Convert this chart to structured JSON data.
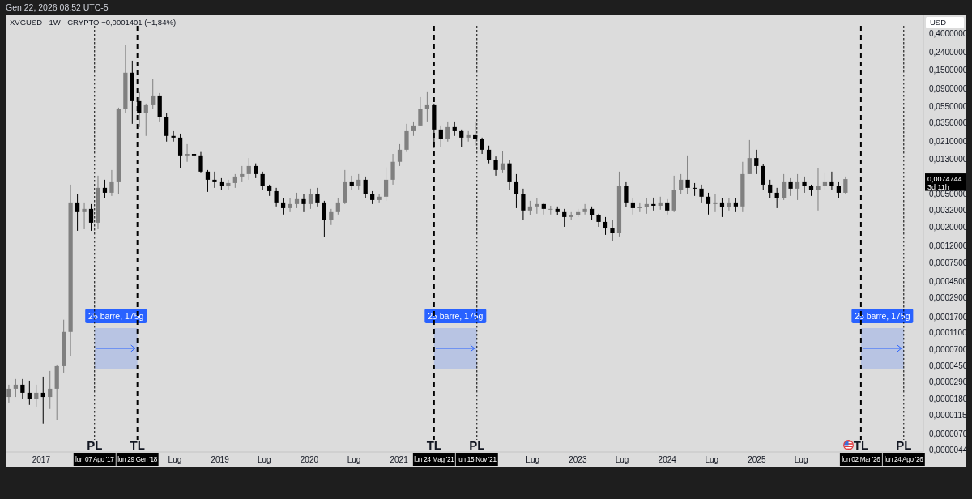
{
  "chart_data": {
    "type": "candlestick",
    "title": "XVGUSD · 1W · CRYPTO −0,0001401 (−1,84%)",
    "subtitle": "Gen 22, 2026 08:52 UTC-5",
    "ylabel": "USD",
    "x": [
      "2016-08-22",
      "2016-09-19",
      "2016-10-17",
      "2016-11-14",
      "2016-12-12",
      "2017-01-09",
      "2017-02-06",
      "2017-03-06",
      "2017-04-03",
      "2017-05-01",
      "2017-05-29",
      "2017-06-26",
      "2017-07-24",
      "2017-08-21",
      "2017-09-18",
      "2017-10-16",
      "2017-11-13",
      "2017-12-11",
      "2018-01-08",
      "2018-02-05",
      "2018-03-05",
      "2018-04-02",
      "2018-04-30",
      "2018-05-28",
      "2018-06-25",
      "2018-07-23",
      "2018-08-20",
      "2018-09-17",
      "2018-10-15",
      "2018-11-12",
      "2018-12-10",
      "2019-01-07",
      "2019-02-04",
      "2019-03-04",
      "2019-04-01",
      "2019-04-29",
      "2019-05-27",
      "2019-06-24",
      "2019-07-22",
      "2019-08-19",
      "2019-09-16",
      "2019-10-14",
      "2019-11-11",
      "2019-12-09",
      "2020-01-06",
      "2020-02-03",
      "2020-03-02",
      "2020-03-30",
      "2020-04-27",
      "2020-05-25",
      "2020-06-22",
      "2020-07-20",
      "2020-08-17",
      "2020-09-14",
      "2020-10-12",
      "2020-11-09",
      "2020-12-07",
      "2021-01-04",
      "2021-02-01",
      "2021-03-01",
      "2021-03-29",
      "2021-04-26",
      "2021-05-24",
      "2021-06-21",
      "2021-07-19",
      "2021-08-16",
      "2021-09-13",
      "2021-10-11",
      "2021-11-08",
      "2021-12-06",
      "2022-01-03",
      "2022-01-31",
      "2022-02-28",
      "2022-03-28",
      "2022-04-25",
      "2022-05-23",
      "2022-06-20",
      "2022-07-18",
      "2022-08-15",
      "2022-09-12",
      "2022-10-10",
      "2022-11-07",
      "2022-12-05",
      "2023-01-02",
      "2023-01-30",
      "2023-02-27",
      "2023-03-27",
      "2023-04-24",
      "2023-05-22",
      "2023-06-19",
      "2023-07-17",
      "2023-08-14",
      "2023-09-11",
      "2023-10-09",
      "2023-11-06",
      "2023-12-04",
      "2024-01-01",
      "2024-01-29",
      "2024-02-26",
      "2024-03-25",
      "2024-04-22",
      "2024-05-20",
      "2024-06-17",
      "2024-07-15",
      "2024-08-12",
      "2024-09-09",
      "2024-10-07",
      "2024-11-04",
      "2024-12-02",
      "2024-12-30",
      "2025-01-27",
      "2025-02-24",
      "2025-03-24",
      "2025-04-21",
      "2025-05-19",
      "2025-06-16",
      "2025-07-14",
      "2025-08-11",
      "2025-09-08",
      "2025-10-06",
      "2025-11-03",
      "2025-12-01",
      "2025-12-29"
    ],
    "ohlc": [
      [
        1.9e-05,
        2.66e-05,
        1.63e-05,
        2.38e-05
      ],
      [
        2.38e-05,
        3.11e-05,
        1.9e-05,
        2.66e-05
      ],
      [
        2.66e-05,
        3.11e-05,
        1.82e-05,
        2.13e-05
      ],
      [
        2.13e-05,
        2.97e-05,
        1.53e-05,
        1.82e-05
      ],
      [
        1.82e-05,
        2.66e-05,
        1.46e-05,
        2.13e-05
      ],
      [
        2.13e-05,
        3.32e-05,
        9.2e-06,
        1.9e-05
      ],
      [
        1.9e-05,
        3.88e-05,
        1.37e-05,
        2.38e-05
      ],
      [
        2.38e-05,
        4.63e-05,
        1.02e-05,
        4.43e-05
      ],
      [
        4.43e-05,
        0.000158,
        3.71e-05,
        0.000113
      ],
      [
        0.000113,
        0.00642,
        5.78e-05,
        0.00394
      ],
      [
        0.00394,
        0.00492,
        0.00181,
        0.00302
      ],
      [
        0.00302,
        0.00394,
        0.00189,
        0.0033
      ],
      [
        0.0033,
        0.00377,
        0.00181,
        0.00226
      ],
      [
        0.00226,
        0.0082,
        0.00189,
        0.00588
      ],
      [
        0.00588,
        0.00734,
        0.0044,
        0.00514
      ],
      [
        0.00514,
        0.00958,
        0.00471,
        0.00686
      ],
      [
        0.00686,
        0.053,
        0.00492,
        0.0507
      ],
      [
        0.0507,
        0.293,
        0.0454,
        0.138
      ],
      [
        0.138,
        0.192,
        0.034,
        0.0633
      ],
      [
        0.0633,
        0.0827,
        0.0311,
        0.0454
      ],
      [
        0.0454,
        0.0592,
        0.0244,
        0.0566
      ],
      [
        0.0566,
        0.1155,
        0.0507,
        0.0739
      ],
      [
        0.0739,
        0.079,
        0.0363,
        0.0406
      ],
      [
        0.0406,
        0.0454,
        0.0209,
        0.0244
      ],
      [
        0.0244,
        0.0278,
        0.0209,
        0.0233
      ],
      [
        0.0233,
        0.026,
        0.01,
        0.0143
      ],
      [
        0.0143,
        0.0195,
        0.012,
        0.0149
      ],
      [
        0.0149,
        0.0167,
        0.013,
        0.0143
      ],
      [
        0.0143,
        0.0157,
        0.00897,
        0.00917
      ],
      [
        0.00917,
        0.00958,
        0.00526,
        0.00734
      ],
      [
        0.00734,
        0.00917,
        0.00588,
        0.00686
      ],
      [
        0.00686,
        0.00767,
        0.0055,
        0.00614
      ],
      [
        0.00614,
        0.00734,
        0.00562,
        0.00671
      ],
      [
        0.00671,
        0.00857,
        0.00588,
        0.00802
      ],
      [
        0.00802,
        0.0107,
        0.00686,
        0.00857
      ],
      [
        0.00857,
        0.0133,
        0.00734,
        0.0107
      ],
      [
        0.0107,
        0.0115,
        0.00767,
        0.00857
      ],
      [
        0.00857,
        0.00917,
        0.0055,
        0.00614
      ],
      [
        0.00614,
        0.00642,
        0.00471,
        0.00537
      ],
      [
        0.00537,
        0.00588,
        0.00353,
        0.00394
      ],
      [
        0.00394,
        0.0044,
        0.00283,
        0.00337
      ],
      [
        0.00337,
        0.0044,
        0.00302,
        0.00377
      ],
      [
        0.00377,
        0.00514,
        0.00337,
        0.00431
      ],
      [
        0.00431,
        0.00492,
        0.00302,
        0.00377
      ],
      [
        0.00377,
        0.00575,
        0.0033,
        0.00492
      ],
      [
        0.00492,
        0.00588,
        0.00353,
        0.00394
      ],
      [
        0.00394,
        0.00412,
        0.00152,
        0.00242
      ],
      [
        0.00242,
        0.0033,
        0.00212,
        0.00302
      ],
      [
        0.00302,
        0.0044,
        0.00283,
        0.00394
      ],
      [
        0.00394,
        0.00958,
        0.00377,
        0.00686
      ],
      [
        0.00686,
        0.0082,
        0.0055,
        0.00614
      ],
      [
        0.00614,
        0.00857,
        0.00562,
        0.00734
      ],
      [
        0.00734,
        0.00802,
        0.0044,
        0.00492
      ],
      [
        0.00492,
        0.00537,
        0.00377,
        0.00421
      ],
      [
        0.00421,
        0.00492,
        0.00394,
        0.00461
      ],
      [
        0.00461,
        0.0103,
        0.00412,
        0.00734
      ],
      [
        0.00734,
        0.0149,
        0.00642,
        0.012
      ],
      [
        0.012,
        0.0195,
        0.0107,
        0.0167
      ],
      [
        0.0167,
        0.034,
        0.0157,
        0.0278
      ],
      [
        0.0278,
        0.0363,
        0.0244,
        0.0325
      ],
      [
        0.0325,
        0.0707,
        0.0325,
        0.0507
      ],
      [
        0.0507,
        0.0827,
        0.0363,
        0.0566
      ],
      [
        0.0566,
        0.0592,
        0.0175,
        0.0291
      ],
      [
        0.0291,
        0.0325,
        0.0179,
        0.0223
      ],
      [
        0.0223,
        0.0363,
        0.0209,
        0.0311
      ],
      [
        0.0311,
        0.0363,
        0.0244,
        0.0278
      ],
      [
        0.0278,
        0.0291,
        0.0179,
        0.0233
      ],
      [
        0.0233,
        0.0278,
        0.0209,
        0.0249
      ],
      [
        0.0249,
        0.0363,
        0.0187,
        0.0223
      ],
      [
        0.0223,
        0.0233,
        0.0149,
        0.0167
      ],
      [
        0.0167,
        0.0187,
        0.0115,
        0.0125
      ],
      [
        0.0125,
        0.0139,
        0.0082,
        0.00958
      ],
      [
        0.00958,
        0.016,
        0.00897,
        0.0115
      ],
      [
        0.0115,
        0.0125,
        0.0055,
        0.00686
      ],
      [
        0.00686,
        0.00857,
        0.00337,
        0.00492
      ],
      [
        0.00492,
        0.00575,
        0.00242,
        0.00316
      ],
      [
        0.00316,
        0.00412,
        0.00277,
        0.00353
      ],
      [
        0.00353,
        0.0044,
        0.00289,
        0.00377
      ],
      [
        0.00377,
        0.00394,
        0.00283,
        0.0033
      ],
      [
        0.0033,
        0.0036,
        0.00283,
        0.0033
      ],
      [
        0.0033,
        0.00353,
        0.00277,
        0.00302
      ],
      [
        0.00302,
        0.0033,
        0.00202,
        0.00264
      ],
      [
        0.00264,
        0.00302,
        0.00242,
        0.00277
      ],
      [
        0.00277,
        0.0033,
        0.00264,
        0.00302
      ],
      [
        0.00302,
        0.00377,
        0.00283,
        0.0033
      ],
      [
        0.0033,
        0.00353,
        0.00242,
        0.00277
      ],
      [
        0.00277,
        0.00289,
        0.00202,
        0.00231
      ],
      [
        0.00231,
        0.00264,
        0.00162,
        0.00193
      ],
      [
        0.00193,
        0.00242,
        0.00136,
        0.00169
      ],
      [
        0.00169,
        0.00917,
        0.00155,
        0.00614
      ],
      [
        0.00614,
        0.00686,
        0.00345,
        0.00394
      ],
      [
        0.00394,
        0.0044,
        0.00283,
        0.00337
      ],
      [
        0.00337,
        0.00394,
        0.00302,
        0.00345
      ],
      [
        0.00345,
        0.0044,
        0.00289,
        0.00377
      ],
      [
        0.00377,
        0.0045,
        0.00316,
        0.0036
      ],
      [
        0.0036,
        0.00461,
        0.00323,
        0.00394
      ],
      [
        0.00394,
        0.00431,
        0.00283,
        0.00316
      ],
      [
        0.00316,
        0.0082,
        0.00302,
        0.0055
      ],
      [
        0.0055,
        0.00857,
        0.00492,
        0.00734
      ],
      [
        0.00734,
        0.0143,
        0.00492,
        0.00588
      ],
      [
        0.00588,
        0.00671,
        0.00471,
        0.00575
      ],
      [
        0.00575,
        0.00642,
        0.00394,
        0.00461
      ],
      [
        0.00461,
        0.00514,
        0.00283,
        0.00377
      ],
      [
        0.00377,
        0.00492,
        0.00302,
        0.00394
      ],
      [
        0.00394,
        0.0044,
        0.00264,
        0.00345
      ],
      [
        0.00345,
        0.0044,
        0.00316,
        0.00394
      ],
      [
        0.00394,
        0.0044,
        0.00302,
        0.00353
      ],
      [
        0.00353,
        0.012,
        0.00302,
        0.00857
      ],
      [
        0.00857,
        0.0218,
        0.00857,
        0.0133
      ],
      [
        0.0133,
        0.0167,
        0.00857,
        0.0107
      ],
      [
        0.0107,
        0.0112,
        0.0055,
        0.00642
      ],
      [
        0.00642,
        0.00734,
        0.0044,
        0.00514
      ],
      [
        0.00514,
        0.00588,
        0.00337,
        0.0044
      ],
      [
        0.0044,
        0.00857,
        0.00421,
        0.00686
      ],
      [
        0.00686,
        0.00767,
        0.00471,
        0.00575
      ],
      [
        0.00575,
        0.00857,
        0.00421,
        0.00686
      ],
      [
        0.00686,
        0.00802,
        0.00514,
        0.00614
      ],
      [
        0.00614,
        0.00642,
        0.00471,
        0.0055
      ],
      [
        0.0055,
        0.01,
        0.00316,
        0.00614
      ],
      [
        0.00614,
        0.00897,
        0.0055,
        0.00686
      ],
      [
        0.00686,
        0.00917,
        0.0055,
        0.00614
      ],
      [
        0.00614,
        0.00686,
        0.0044,
        0.00514
      ],
      [
        0.00514,
        0.00802,
        0.00492,
        0.0074744
      ]
    ],
    "colors": [
      "#808080",
      "#808080",
      "#000000",
      "#000000",
      "#808080",
      "#000000",
      "#808080",
      "#808080",
      "#808080",
      "#808080",
      "#000000",
      "#808080",
      "#000000",
      "#808080",
      "#000000",
      "#808080",
      "#808080",
      "#808080",
      "#000000",
      "#000000",
      "#808080",
      "#808080",
      "#000000",
      "#000000",
      "#000000",
      "#000000",
      "#808080",
      "#000000",
      "#000000",
      "#000000",
      "#000000",
      "#000000",
      "#808080",
      "#808080",
      "#808080",
      "#808080",
      "#000000",
      "#000000",
      "#000000",
      "#000000",
      "#000000",
      "#808080",
      "#808080",
      "#000000",
      "#808080",
      "#000000",
      "#000000",
      "#808080",
      "#808080",
      "#808080",
      "#000000",
      "#808080",
      "#000000",
      "#000000",
      "#808080",
      "#808080",
      "#808080",
      "#808080",
      "#808080",
      "#808080",
      "#808080",
      "#808080",
      "#000000",
      "#000000",
      "#808080",
      "#000000",
      "#000000",
      "#808080",
      "#000000",
      "#000000",
      "#000000",
      "#000000",
      "#808080",
      "#000000",
      "#000000",
      "#000000",
      "#808080",
      "#808080",
      "#000000",
      "#808080",
      "#000000",
      "#000000",
      "#808080",
      "#808080",
      "#808080",
      "#000000",
      "#000000",
      "#000000",
      "#000000",
      "#808080",
      "#000000",
      "#000000",
      "#808080",
      "#808080",
      "#000000",
      "#808080",
      "#000000",
      "#808080",
      "#808080",
      "#000000",
      "#000000",
      "#000000",
      "#000000",
      "#808080",
      "#000000",
      "#808080",
      "#000000",
      "#808080",
      "#808080",
      "#000000",
      "#000000",
      "#000000",
      "#000000",
      "#808080",
      "#000000",
      "#808080",
      "#000000",
      "#000000",
      "#808080",
      "#808080",
      "#000000",
      "#000000",
      "#808080"
    ],
    "xlim": [
      "2016-08-09",
      "2026-11-12"
    ],
    "xticks": [
      {
        "value": "2017-01-01",
        "label": "2017"
      },
      {
        "value": "2017-08-07",
        "label": "lun 07 Ago '17"
      },
      {
        "value": "2018-01-29",
        "label": "lun 29 Gen '18"
      },
      {
        "value": "2018-07-01",
        "label": "Lug"
      },
      {
        "value": "2019-01-01",
        "label": "2019"
      },
      {
        "value": "2019-07-01",
        "label": "Lug"
      },
      {
        "value": "2020-01-01",
        "label": "2020"
      },
      {
        "value": "2020-07-01",
        "label": "Lug"
      },
      {
        "value": "2021-01-01",
        "label": "2021"
      },
      {
        "value": "2021-05-24",
        "label": "lun 24 Mag '21"
      },
      {
        "value": "2021-11-15",
        "label": "lun 15 Nov '21"
      },
      {
        "value": "2022-07-01",
        "label": "Lug"
      },
      {
        "value": "2023-01-01",
        "label": "2023"
      },
      {
        "value": "2023-07-01",
        "label": "Lug"
      },
      {
        "value": "2024-01-01",
        "label": "2024"
      },
      {
        "value": "2024-07-01",
        "label": "Lug"
      },
      {
        "value": "2025-01-01",
        "label": "2025"
      },
      {
        "value": "2025-07-01",
        "label": "Lug"
      },
      {
        "value": "2026-03-02",
        "label": "lun 02 Mar '26"
      },
      {
        "value": "2026-08-24",
        "label": "lun 24 Ago '26"
      }
    ],
    "ylim": [
      4.2e-06,
      0.68
    ],
    "yticks": [
      {
        "value": 0.4,
        "label": "0,4000000"
      },
      {
        "value": 0.24,
        "label": "0,2400000"
      },
      {
        "value": 0.15,
        "label": "0,1500000"
      },
      {
        "value": 0.09,
        "label": "0,0900000"
      },
      {
        "value": 0.055,
        "label": "0,0550000"
      },
      {
        "value": 0.035,
        "label": "0,0350000"
      },
      {
        "value": 0.021,
        "label": "0,0210000"
      },
      {
        "value": 0.013,
        "label": "0,0130000"
      },
      {
        "value": 0.005,
        "label": "0,0050000"
      },
      {
        "value": 0.0032,
        "label": "0,0032000"
      },
      {
        "value": 0.002,
        "label": "0,0020000"
      },
      {
        "value": 0.0012,
        "label": "0,0012000"
      },
      {
        "value": 0.00075,
        "label": "0,0007500"
      },
      {
        "value": 0.00045,
        "label": "0,0004500"
      },
      {
        "value": 0.00029,
        "label": "0,0002900"
      },
      {
        "value": 0.00017,
        "label": "0,0001700"
      },
      {
        "value": 0.00011,
        "label": "0,0001100"
      },
      {
        "value": 7e-05,
        "label": "0,0000700"
      },
      {
        "value": 4.5e-05,
        "label": "0,0000450"
      },
      {
        "value": 2.9e-05,
        "label": "0,0000290"
      },
      {
        "value": 1.8e-05,
        "label": "0,0000180"
      },
      {
        "value": 1.15e-05,
        "label": "0,0000115"
      },
      {
        "value": 7e-06,
        "label": "0,0000070"
      },
      {
        "value": 4.4e-06,
        "label": "0,0000044"
      }
    ],
    "log": true,
    "ref_lines": [
      {
        "axis": "x",
        "value": "2017-08-07",
        "label": "PL",
        "line_style": "dotted",
        "color": "#000000"
      },
      {
        "axis": "x",
        "value": "2018-01-29",
        "label": "TL",
        "line_style": "dashed",
        "color": "#000000"
      },
      {
        "axis": "x",
        "value": "2021-05-24",
        "label": "TL",
        "line_style": "dashed",
        "color": "#000000"
      },
      {
        "axis": "x",
        "value": "2021-11-15",
        "label": "PL",
        "line_style": "dotted",
        "color": "#000000"
      },
      {
        "axis": "x",
        "value": "2026-03-02",
        "label": "TL",
        "line_style": "dashed",
        "color": "#000000"
      },
      {
        "axis": "x",
        "value": "2026-08-24",
        "label": "PL",
        "line_style": "dotted",
        "color": "#000000"
      }
    ],
    "bands": [
      {
        "axis": "x",
        "from": "2017-08-07",
        "to": "2018-01-29",
        "label": "25 barre, 175g",
        "color": "#2962ff"
      },
      {
        "axis": "x",
        "from": "2021-05-24",
        "to": "2021-11-15",
        "label": "25 barre, 175g",
        "color": "#2962ff"
      },
      {
        "axis": "x",
        "from": "2026-03-02",
        "to": "2026-08-24",
        "label": "25 barre, 175g",
        "color": "#2962ff"
      }
    ],
    "annotations": [
      "0,0074744",
      "3d 11h"
    ]
  }
}
